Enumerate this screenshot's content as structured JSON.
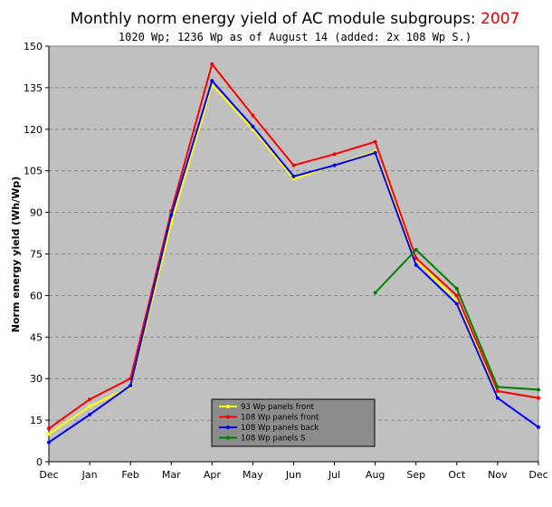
{
  "chart_data": {
    "type": "line",
    "title_prefix": "Monthly norm energy yield of AC module subgroups: ",
    "title_year": "2007",
    "subtitle": "1020 Wp; 1236 Wp as of August 14 (added: 2x 108 Wp S.)",
    "xlabel": "",
    "ylabel": "Norm energy yield (Wh/Wp)",
    "categories": [
      "Dec",
      "Jan",
      "Feb",
      "Mar",
      "Apr",
      "May",
      "Jun",
      "Jul",
      "Aug",
      "Sep",
      "Oct",
      "Nov",
      "Dec"
    ],
    "ylim": [
      0,
      150
    ],
    "yticks": [
      0,
      15,
      30,
      45,
      60,
      75,
      90,
      105,
      120,
      135,
      150
    ],
    "grid": true,
    "legend_position": "bottom-center",
    "plot_background": "#c0c0c0",
    "series": [
      {
        "name": "93 Wp panels front",
        "color": "#ffff00",
        "values": [
          10,
          20,
          27,
          86,
          136,
          120,
          102,
          107,
          112,
          73,
          58,
          24,
          null
        ]
      },
      {
        "name": "108 Wp panels front",
        "color": "#ff0000",
        "values": [
          12,
          22.5,
          30,
          90.5,
          143.5,
          125,
          107,
          111,
          115.5,
          73.5,
          60,
          25.5,
          23
        ]
      },
      {
        "name": "108 Wp panels back",
        "color": "#0000ff",
        "values": [
          7,
          17,
          27.5,
          89,
          137.5,
          121,
          103,
          107,
          111.5,
          71,
          57,
          23,
          12.5
        ]
      },
      {
        "name": "108 Wp panels S",
        "color": "#008000",
        "values": [
          null,
          null,
          null,
          null,
          null,
          null,
          null,
          null,
          61,
          76.5,
          62.5,
          27,
          26
        ]
      }
    ]
  }
}
